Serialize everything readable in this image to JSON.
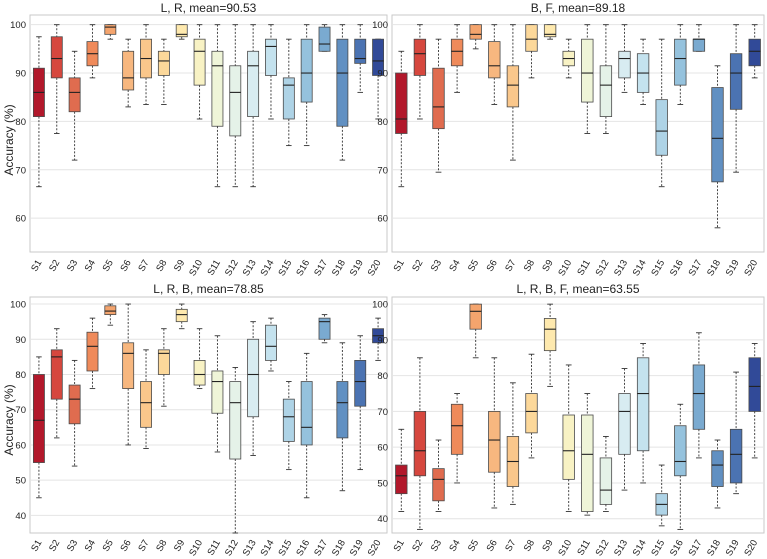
{
  "y_axis_label": "Accuracy (%)",
  "chart_data": [
    {
      "type": "box",
      "title": "L, R, mean=90.53",
      "ylabel": "Accuracy (%)",
      "ylim": [
        53,
        102
      ],
      "yticks": [
        60,
        70,
        80,
        90,
        100
      ],
      "categories": [
        "S1",
        "S2",
        "S3",
        "S4",
        "S5",
        "S6",
        "S7",
        "S8",
        "S9",
        "S10",
        "S11",
        "S12",
        "S13",
        "S14",
        "S15",
        "S16",
        "S17",
        "S18",
        "S19",
        "S20"
      ],
      "boxes": [
        {
          "whislo": 66.5,
          "q1": 81,
          "med": 86,
          "q3": 91,
          "whishi": 97.5
        },
        {
          "whislo": 77.5,
          "q1": 89,
          "med": 93,
          "q3": 97.5,
          "whishi": 100
        },
        {
          "whislo": 72,
          "q1": 82,
          "med": 86,
          "q3": 89,
          "whishi": 94.5
        },
        {
          "whislo": 89,
          "q1": 91.5,
          "med": 94,
          "q3": 96.5,
          "whishi": 100
        },
        {
          "whislo": 97,
          "q1": 98,
          "med": 99.5,
          "q3": 100,
          "whishi": 100
        },
        {
          "whislo": 83,
          "q1": 86.5,
          "med": 89,
          "q3": 94.5,
          "whishi": 97
        },
        {
          "whislo": 83.5,
          "q1": 89,
          "med": 93,
          "q3": 97,
          "whishi": 100
        },
        {
          "whislo": 83.5,
          "q1": 89.5,
          "med": 92.5,
          "q3": 94.5,
          "whishi": 97
        },
        {
          "whislo": 97,
          "q1": 97.5,
          "med": 98,
          "q3": 100,
          "whishi": 100
        },
        {
          "whislo": 80.5,
          "q1": 87.5,
          "med": 94.5,
          "q3": 97,
          "whishi": 100
        },
        {
          "whislo": 66.5,
          "q1": 79,
          "med": 91.5,
          "q3": 94.5,
          "whishi": 100
        },
        {
          "whislo": 66.5,
          "q1": 77,
          "med": 86,
          "q3": 91.5,
          "whishi": 100
        },
        {
          "whislo": 66.5,
          "q1": 81,
          "med": 91.5,
          "q3": 94.5,
          "whishi": 100
        },
        {
          "whislo": 80.5,
          "q1": 89.5,
          "med": 95.5,
          "q3": 97,
          "whishi": 100
        },
        {
          "whislo": 75,
          "q1": 80.5,
          "med": 87.5,
          "q3": 89,
          "whishi": 97
        },
        {
          "whislo": 75,
          "q1": 84,
          "med": 90,
          "q3": 97,
          "whishi": 100
        },
        {
          "whislo": 94.5,
          "q1": 94.5,
          "med": 96,
          "q3": 99.5,
          "whishi": 100
        },
        {
          "whislo": 72,
          "q1": 79,
          "med": 90,
          "q3": 97,
          "whishi": 100
        },
        {
          "whislo": 86,
          "q1": 92,
          "med": 93,
          "q3": 97,
          "whishi": 100
        },
        {
          "whislo": 80.5,
          "q1": 89.5,
          "med": 92.5,
          "q3": 97,
          "whishi": 97
        }
      ]
    },
    {
      "type": "box",
      "title": "B, F, mean=89.18",
      "ylabel": "Accuracy (%)",
      "ylim": [
        53,
        102
      ],
      "yticks": [
        60,
        70,
        80,
        90,
        100
      ],
      "categories": [
        "S1",
        "S2",
        "S3",
        "S4",
        "S5",
        "S6",
        "S7",
        "S8",
        "S9",
        "S10",
        "S11",
        "S12",
        "S13",
        "S14",
        "S15",
        "S16",
        "S17",
        "S18",
        "S19",
        "S20"
      ],
      "boxes": [
        {
          "whislo": 66.5,
          "q1": 77.5,
          "med": 80.5,
          "q3": 90,
          "whishi": 94.5
        },
        {
          "whislo": 80.5,
          "q1": 89.5,
          "med": 94,
          "q3": 97,
          "whishi": 100
        },
        {
          "whislo": 69.5,
          "q1": 78.5,
          "med": 83,
          "q3": 91,
          "whishi": 97
        },
        {
          "whislo": 86,
          "q1": 91.5,
          "med": 94.5,
          "q3": 97,
          "whishi": 100
        },
        {
          "whislo": 95,
          "q1": 97,
          "med": 98,
          "q3": 100,
          "whishi": 100
        },
        {
          "whislo": 83.5,
          "q1": 89,
          "med": 91.5,
          "q3": 96.5,
          "whishi": 100
        },
        {
          "whislo": 72,
          "q1": 83,
          "med": 87.5,
          "q3": 91.5,
          "whishi": 100
        },
        {
          "whislo": 89,
          "q1": 94.5,
          "med": 97,
          "q3": 100,
          "whishi": 100
        },
        {
          "whislo": 97,
          "q1": 97.5,
          "med": 98,
          "q3": 100,
          "whishi": 100
        },
        {
          "whislo": 89,
          "q1": 91.5,
          "med": 93,
          "q3": 94.5,
          "whishi": 97
        },
        {
          "whislo": 77.5,
          "q1": 84,
          "med": 90,
          "q3": 97,
          "whishi": 100
        },
        {
          "whislo": 77.5,
          "q1": 81,
          "med": 87.5,
          "q3": 91.5,
          "whishi": 100
        },
        {
          "whislo": 86,
          "q1": 89,
          "med": 93,
          "q3": 94.5,
          "whishi": 100
        },
        {
          "whislo": 83.5,
          "q1": 86,
          "med": 90,
          "q3": 94,
          "whishi": 97
        },
        {
          "whislo": 66.5,
          "q1": 73,
          "med": 78,
          "q3": 84.5,
          "whishi": 97
        },
        {
          "whislo": 83.5,
          "q1": 87.5,
          "med": 93,
          "q3": 97,
          "whishi": 100
        },
        {
          "whislo": 94.5,
          "q1": 94.5,
          "med": 97,
          "q3": 97,
          "whishi": 100
        },
        {
          "whislo": 58,
          "q1": 67.5,
          "med": 76.5,
          "q3": 87,
          "whishi": 91.5
        },
        {
          "whislo": 69.5,
          "q1": 82.5,
          "med": 90,
          "q3": 94,
          "whishi": 100
        },
        {
          "whislo": 89,
          "q1": 91.5,
          "med": 94.5,
          "q3": 97,
          "whishi": 100
        }
      ]
    },
    {
      "type": "box",
      "title": "L, R, B, mean=78.85",
      "ylabel": "Accuracy (%)",
      "ylim": [
        35,
        102
      ],
      "yticks": [
        40,
        50,
        60,
        70,
        80,
        90,
        100
      ],
      "categories": [
        "S1",
        "S2",
        "S3",
        "S4",
        "S5",
        "S6",
        "S7",
        "S8",
        "S9",
        "S10",
        "S11",
        "S12",
        "S13",
        "S14",
        "S15",
        "S16",
        "S17",
        "S18",
        "S19",
        "S20"
      ],
      "boxes": [
        {
          "whislo": 45,
          "q1": 55,
          "med": 67,
          "q3": 80,
          "whishi": 85
        },
        {
          "whislo": 62,
          "q1": 73,
          "med": 85,
          "q3": 87,
          "whishi": 93
        },
        {
          "whislo": 54,
          "q1": 66,
          "med": 73,
          "q3": 77,
          "whishi": 84
        },
        {
          "whislo": 76,
          "q1": 81,
          "med": 88,
          "q3": 92,
          "whishi": 96
        },
        {
          "whislo": 94,
          "q1": 97,
          "med": 98,
          "q3": 99.5,
          "whishi": 100
        },
        {
          "whislo": 60,
          "q1": 76,
          "med": 86,
          "q3": 89,
          "whishi": 100
        },
        {
          "whislo": 59,
          "q1": 65,
          "med": 72,
          "q3": 78,
          "whishi": 87
        },
        {
          "whislo": 71,
          "q1": 80,
          "med": 86,
          "q3": 87,
          "whishi": 93
        },
        {
          "whislo": 93,
          "q1": 95,
          "med": 97,
          "q3": 98.5,
          "whishi": 100
        },
        {
          "whislo": 76,
          "q1": 77,
          "med": 80,
          "q3": 84,
          "whishi": 93
        },
        {
          "whislo": 58,
          "q1": 69,
          "med": 78,
          "q3": 81,
          "whishi": 91
        },
        {
          "whislo": 35,
          "q1": 56,
          "med": 72,
          "q3": 78,
          "whishi": 82
        },
        {
          "whislo": 57,
          "q1": 68,
          "med": 80,
          "q3": 90,
          "whishi": 95
        },
        {
          "whislo": 81,
          "q1": 84,
          "med": 88,
          "q3": 94,
          "whishi": 96
        },
        {
          "whislo": 53,
          "q1": 61,
          "med": 68,
          "q3": 73,
          "whishi": 78
        },
        {
          "whislo": 45,
          "q1": 60,
          "med": 65,
          "q3": 78,
          "whishi": 86
        },
        {
          "whislo": 89,
          "q1": 90,
          "med": 95,
          "q3": 96,
          "whishi": 97
        },
        {
          "whislo": 47,
          "q1": 62,
          "med": 72,
          "q3": 78,
          "whishi": 89
        },
        {
          "whislo": 53,
          "q1": 71,
          "med": 78,
          "q3": 84,
          "whishi": 91
        },
        {
          "whislo": 84,
          "q1": 89,
          "med": 91,
          "q3": 93,
          "whishi": 96
        }
      ]
    },
    {
      "type": "box",
      "title": "L, R, B, F, mean=63.55",
      "ylabel": "Accuracy (%)",
      "ylim": [
        36,
        102
      ],
      "yticks": [
        40,
        50,
        60,
        70,
        80,
        90,
        100
      ],
      "categories": [
        "S1",
        "S2",
        "S3",
        "S4",
        "S5",
        "S6",
        "S7",
        "S8",
        "S9",
        "S10",
        "S11",
        "S12",
        "S13",
        "S14",
        "S15",
        "S16",
        "S17",
        "S18",
        "S19",
        "S20"
      ],
      "boxes": [
        {
          "whislo": 42,
          "q1": 47,
          "med": 52,
          "q3": 55,
          "whishi": 65
        },
        {
          "whislo": 37,
          "q1": 52,
          "med": 59,
          "q3": 70,
          "whishi": 85
        },
        {
          "whislo": 42,
          "q1": 45,
          "med": 51,
          "q3": 54,
          "whishi": 62
        },
        {
          "whislo": 50,
          "q1": 58,
          "med": 66,
          "q3": 72,
          "whishi": 75
        },
        {
          "whislo": 85,
          "q1": 93,
          "med": 98,
          "q3": 100,
          "whishi": 100
        },
        {
          "whislo": 43,
          "q1": 53,
          "med": 62,
          "q3": 70,
          "whishi": 85
        },
        {
          "whislo": 44,
          "q1": 49,
          "med": 56,
          "q3": 63,
          "whishi": 78
        },
        {
          "whislo": 57,
          "q1": 64,
          "med": 70,
          "q3": 75,
          "whishi": 86
        },
        {
          "whislo": 77,
          "q1": 87,
          "med": 93,
          "q3": 96,
          "whishi": 100
        },
        {
          "whislo": 42,
          "q1": 51,
          "med": 59,
          "q3": 69,
          "whishi": 83
        },
        {
          "whislo": 41,
          "q1": 42,
          "med": 58,
          "q3": 69,
          "whishi": 75
        },
        {
          "whislo": 42,
          "q1": 44,
          "med": 48,
          "q3": 57,
          "whishi": 63
        },
        {
          "whislo": 48,
          "q1": 58,
          "med": 70,
          "q3": 75,
          "whishi": 82
        },
        {
          "whislo": 50,
          "q1": 59,
          "med": 75,
          "q3": 85,
          "whishi": 89
        },
        {
          "whislo": 38,
          "q1": 41,
          "med": 44,
          "q3": 47,
          "whishi": 55
        },
        {
          "whislo": 37,
          "q1": 52,
          "med": 56,
          "q3": 66,
          "whishi": 72
        },
        {
          "whislo": 57,
          "q1": 65,
          "med": 75,
          "q3": 83,
          "whishi": 92
        },
        {
          "whislo": 43,
          "q1": 49,
          "med": 55,
          "q3": 59,
          "whishi": 62
        },
        {
          "whislo": 47,
          "q1": 50,
          "med": 58,
          "q3": 65,
          "whishi": 81
        },
        {
          "whislo": 57,
          "q1": 70,
          "med": 77,
          "q3": 85,
          "whishi": 89
        }
      ]
    }
  ],
  "palette": [
    "#b2182b",
    "#d6473e",
    "#e06c4f",
    "#ef8a5a",
    "#f4a46d",
    "#f7b77f",
    "#fac78b",
    "#fcd89a",
    "#fee9ae",
    "#f8f2c4",
    "#eff5d8",
    "#e5f2e8",
    "#d8ecf1",
    "#c4e2ee",
    "#aed3e6",
    "#95c2dd",
    "#7aaad0",
    "#6190c2",
    "#4b73b2",
    "#314a98"
  ],
  "colors": {
    "background": "#ffffff",
    "panel_border": "#c9c9c9",
    "grid": "#e4e4e4",
    "whisker": "#333333",
    "box_edge": "#4a4a4a",
    "median": "#222222"
  }
}
